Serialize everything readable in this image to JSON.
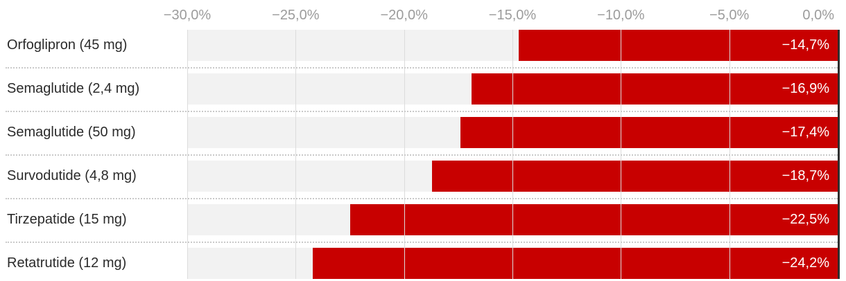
{
  "chart_data": {
    "type": "bar",
    "orientation": "horizontal",
    "title": "",
    "xlabel": "",
    "ylabel": "",
    "categories": [
      "Orfoglipron (45 mg)",
      "Semaglutide (2,4 mg)",
      "Semaglutide (50 mg)",
      "Survodutide (4,8 mg)",
      "Tirzepatide (15 mg)",
      "Retatrutide (12 mg)"
    ],
    "values": [
      -14.7,
      -16.9,
      -17.4,
      -18.7,
      -22.5,
      -24.2
    ],
    "value_labels": [
      "−14,7%",
      "−16,9%",
      "−17,4%",
      "−18,7%",
      "−22,5%",
      "−24,2%"
    ],
    "xlim": [
      -30,
      0
    ],
    "x_ticks": [
      -30,
      -25,
      -20,
      -15,
      -10,
      -5,
      0
    ],
    "x_tick_labels": [
      "−30,0%",
      "−25,0%",
      "−20,0%",
      "−15,0%",
      "−10,0%",
      "−5,0%",
      "0,0%"
    ],
    "grid": true,
    "legend": null,
    "colors": {
      "bar": "#c80000",
      "track": "#f2f2f2",
      "gridline": "#dcdcdc",
      "axis_line": "#2f2f2f",
      "tick_label": "#9c9c9c",
      "category_label": "#2b2b2b",
      "value_label": "#ffffff",
      "separator": "#c9c9c9",
      "background": "#ffffff"
    }
  }
}
